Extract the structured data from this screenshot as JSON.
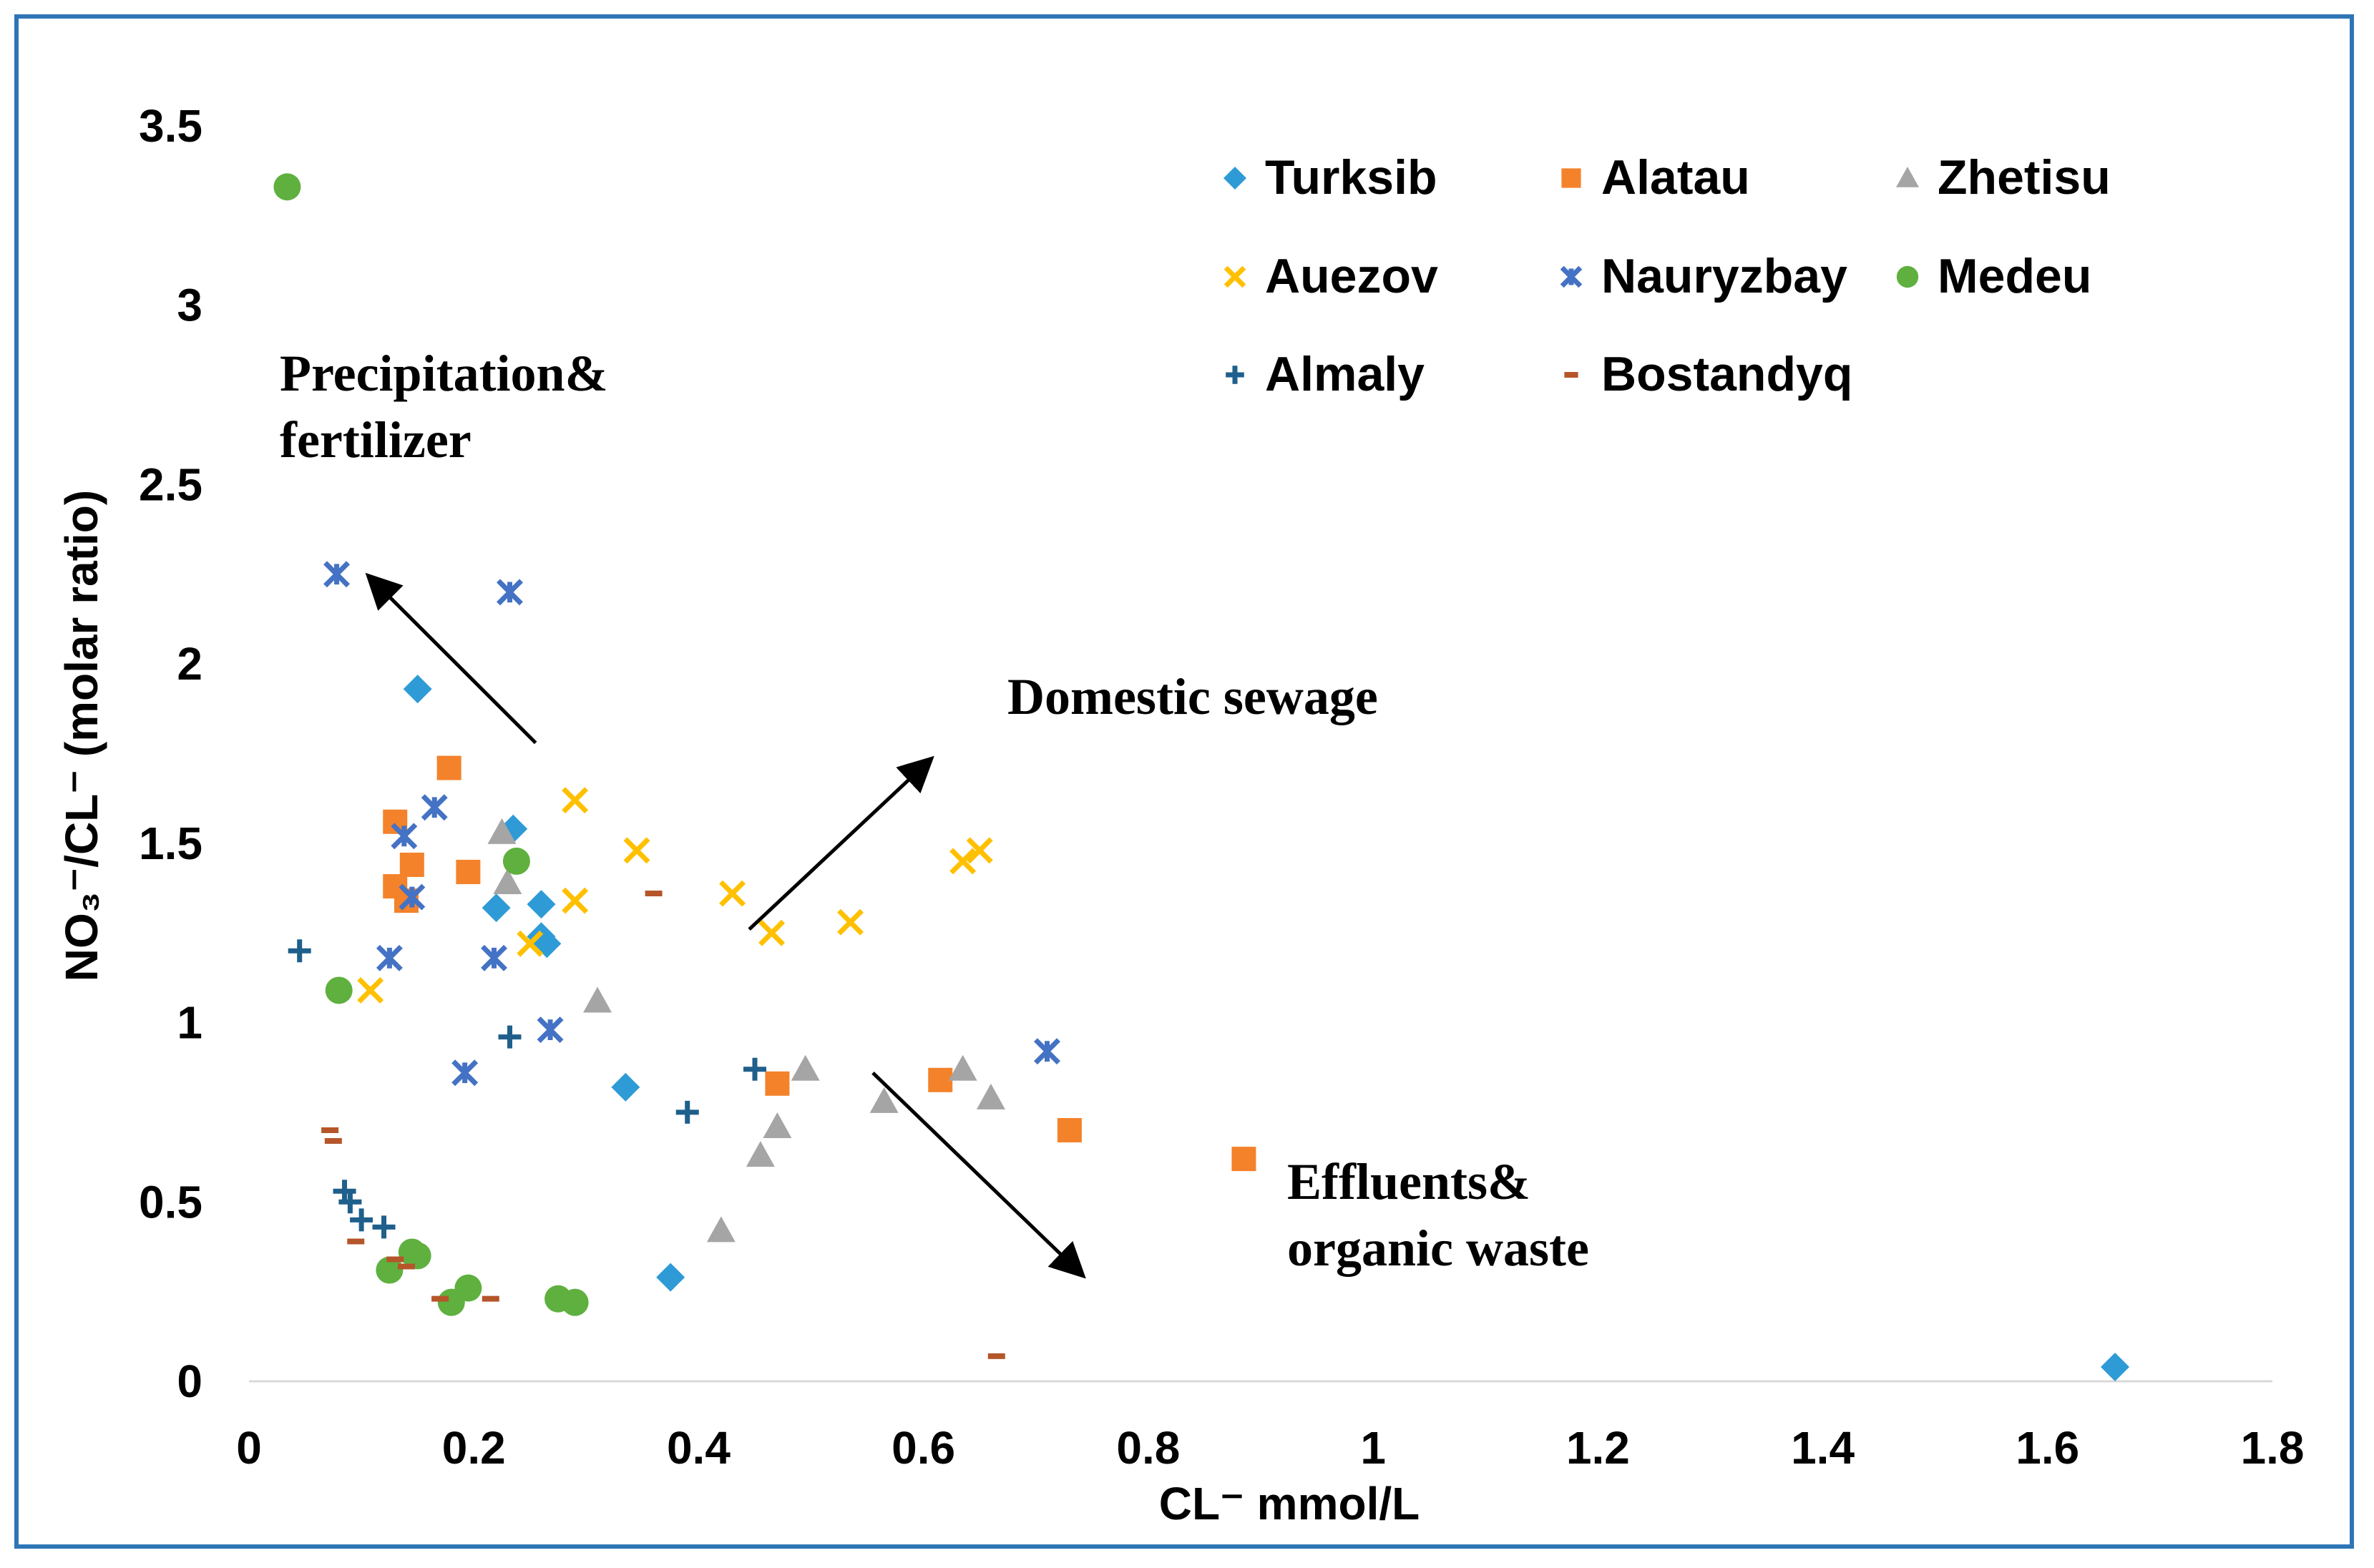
{
  "chart_data": {
    "type": "scatter",
    "title": "",
    "xlabel": "CL⁻ mmol/L",
    "ylabel": "NO₃⁻/CL⁻ (molar ratio)",
    "xlim": [
      0,
      1.8
    ],
    "ylim": [
      0,
      3.5
    ],
    "x_ticks": [
      "0",
      "0.2",
      "0.4",
      "0.6",
      "0.8",
      "1",
      "1.2",
      "1.4",
      "1.6",
      "1.8"
    ],
    "y_ticks": [
      "0",
      "0.5",
      "1",
      "1.5",
      "2",
      "2.5",
      "3",
      "3.5"
    ],
    "grid": false,
    "legend_position": "top-right",
    "series": [
      {
        "name": "Turksib",
        "marker": "diamond",
        "color": "#2e9bd6",
        "points": [
          [
            0.15,
            1.93
          ],
          [
            0.235,
            1.54
          ],
          [
            0.22,
            1.32
          ],
          [
            0.26,
            1.33
          ],
          [
            0.26,
            1.24
          ],
          [
            0.265,
            1.22
          ],
          [
            0.335,
            0.82
          ],
          [
            0.375,
            0.29
          ],
          [
            1.66,
            0.04
          ]
        ]
      },
      {
        "name": "Alatau",
        "marker": "square",
        "color": "#f4822b",
        "points": [
          [
            0.178,
            1.71
          ],
          [
            0.13,
            1.56
          ],
          [
            0.145,
            1.44
          ],
          [
            0.195,
            1.42
          ],
          [
            0.13,
            1.38
          ],
          [
            0.14,
            1.34
          ],
          [
            0.47,
            0.83
          ],
          [
            0.615,
            0.84
          ],
          [
            0.73,
            0.7
          ],
          [
            0.885,
            0.62
          ]
        ]
      },
      {
        "name": "Zhetisu",
        "marker": "triangle",
        "color": "#a5a5a5",
        "points": [
          [
            0.225,
            1.53
          ],
          [
            0.23,
            1.39
          ],
          [
            0.31,
            1.06
          ],
          [
            0.495,
            0.87
          ],
          [
            0.635,
            0.87
          ],
          [
            0.66,
            0.79
          ],
          [
            0.565,
            0.78
          ],
          [
            0.47,
            0.71
          ],
          [
            0.455,
            0.63
          ],
          [
            0.42,
            0.42
          ]
        ]
      },
      {
        "name": "Auezov",
        "marker": "x",
        "color": "#ffc000",
        "points": [
          [
            0.29,
            1.62
          ],
          [
            0.345,
            1.48
          ],
          [
            0.635,
            1.45
          ],
          [
            0.65,
            1.48
          ],
          [
            0.43,
            1.36
          ],
          [
            0.29,
            1.34
          ],
          [
            0.465,
            1.25
          ],
          [
            0.535,
            1.28
          ],
          [
            0.25,
            1.22
          ],
          [
            0.108,
            1.09
          ]
        ]
      },
      {
        "name": "Nauryzbay",
        "marker": "star",
        "color": "#4472c4",
        "points": [
          [
            0.078,
            2.25
          ],
          [
            0.232,
            2.2
          ],
          [
            0.165,
            1.6
          ],
          [
            0.138,
            1.52
          ],
          [
            0.145,
            1.35
          ],
          [
            0.125,
            1.18
          ],
          [
            0.218,
            1.18
          ],
          [
            0.268,
            0.98
          ],
          [
            0.192,
            0.86
          ],
          [
            0.71,
            0.92
          ]
        ]
      },
      {
        "name": "Medeu",
        "marker": "circle",
        "color": "#5fb03f",
        "points": [
          [
            0.034,
            3.33
          ],
          [
            0.238,
            1.45
          ],
          [
            0.08,
            1.09
          ],
          [
            0.125,
            0.31
          ],
          [
            0.145,
            0.36
          ],
          [
            0.15,
            0.35
          ],
          [
            0.195,
            0.26
          ],
          [
            0.18,
            0.22
          ],
          [
            0.275,
            0.23
          ],
          [
            0.29,
            0.22
          ]
        ]
      },
      {
        "name": "Almaly",
        "marker": "plus",
        "color": "#1f5f8b",
        "points": [
          [
            0.045,
            1.2
          ],
          [
            0.232,
            0.96
          ],
          [
            0.45,
            0.87
          ],
          [
            0.39,
            0.75
          ],
          [
            0.085,
            0.53
          ],
          [
            0.09,
            0.5
          ],
          [
            0.1,
            0.45
          ],
          [
            0.12,
            0.43
          ]
        ]
      },
      {
        "name": "Bostandyq",
        "marker": "dash",
        "color": "#b5562a",
        "points": [
          [
            0.072,
            0.7
          ],
          [
            0.075,
            0.67
          ],
          [
            0.36,
            1.36
          ],
          [
            0.095,
            0.39
          ],
          [
            0.13,
            0.34
          ],
          [
            0.14,
            0.32
          ],
          [
            0.17,
            0.23
          ],
          [
            0.215,
            0.23
          ],
          [
            0.665,
            0.07
          ]
        ]
      }
    ],
    "annotations": [
      {
        "id": "precipitation",
        "lines": [
          "Precipitation&",
          "fertilizer"
        ]
      },
      {
        "id": "domestic",
        "lines": [
          "Domestic sewage"
        ]
      },
      {
        "id": "effluents",
        "lines": [
          "Effluents&",
          "organic waste"
        ]
      }
    ],
    "arrows": [
      {
        "from": [
          0.255,
          1.78
        ],
        "to": [
          0.108,
          2.24
        ]
      },
      {
        "from": [
          0.445,
          1.26
        ],
        "to": [
          0.605,
          1.73
        ]
      },
      {
        "from": [
          0.555,
          0.86
        ],
        "to": [
          0.74,
          0.3
        ]
      }
    ]
  }
}
